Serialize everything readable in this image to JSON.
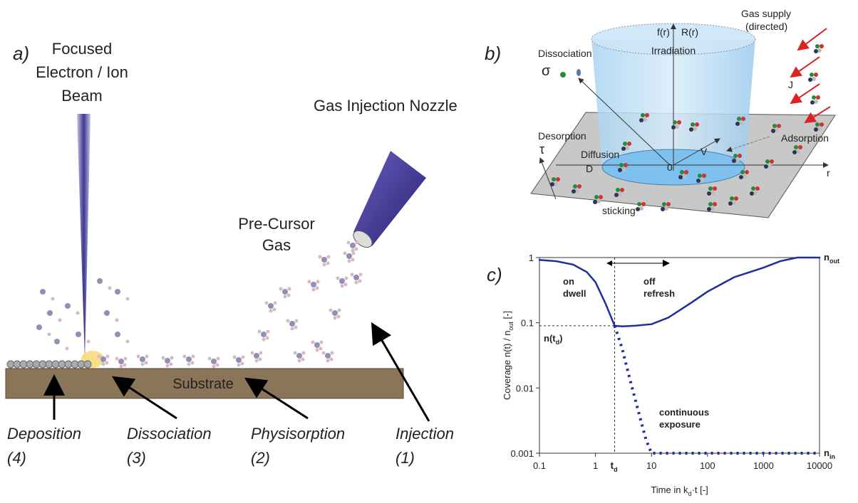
{
  "panel_a": {
    "tag": "a)",
    "beam_label": [
      "Focused",
      "Electron / Ion",
      "Beam"
    ],
    "nozzle_label": "Gas Injection Nozzle",
    "gas_label": [
      "Pre-Cursor",
      "Gas"
    ],
    "substrate": "Substrate",
    "steps": [
      {
        "name": "Deposition",
        "num": "(4)"
      },
      {
        "name": "Dissociation",
        "num": "(3)"
      },
      {
        "name": "Physisorption",
        "num": "(2)"
      },
      {
        "name": "Injection",
        "num": "(1)"
      }
    ]
  },
  "panel_b": {
    "tag": "b)",
    "dissociation": "Dissociation",
    "sigma": "σ",
    "f": "f(r)",
    "R": "R(r)",
    "irradiation": "Irradiation",
    "gas_supply": [
      "Gas supply",
      "(directed)"
    ],
    "J": "J",
    "desorption": "Desorption",
    "tau": "τ",
    "diffusion": "Diffusion",
    "D": "D",
    "V": "V",
    "origin": "0",
    "r": "r",
    "adsorption": "Adsorption",
    "sticking": "sticking"
  },
  "chart_data": {
    "type": "line",
    "tag": "c)",
    "log_x": true,
    "log_y": true,
    "xlim": [
      0.1,
      10000
    ],
    "ylim": [
      0.001,
      1
    ],
    "xticks": [
      0.1,
      1,
      10,
      100,
      1000,
      10000
    ],
    "yticks": [
      0.001,
      0.01,
      0.1,
      1
    ],
    "x_label": {
      "text": "Time in k",
      "sub": "d",
      "tail": "·t [-]"
    },
    "y_label": {
      "text": "Coverage n(t) / n",
      "sub": "out",
      "tail": " [-]"
    },
    "n_out": {
      "text": "n",
      "sub": "out",
      "value": 1
    },
    "n_in": {
      "text": "n",
      "sub": "in",
      "value": 0.001
    },
    "t_d": {
      "text": "t",
      "sub": "d",
      "value": 2.2
    },
    "n_td": {
      "text": "n(t",
      "sub": "d",
      "tail": ")",
      "value": 0.09
    },
    "annotations": {
      "on": [
        "on",
        "dwell"
      ],
      "off": [
        "off",
        "refresh"
      ],
      "continuous": [
        "continuous",
        "exposure"
      ]
    },
    "series": [
      {
        "color": "#1f2d9e",
        "style": "solid",
        "x": [
          0.1,
          0.2,
          0.4,
          0.7,
          1,
          1.5,
          2.2,
          3,
          5,
          10,
          20,
          50,
          100,
          300,
          1000,
          2000,
          4000,
          10000
        ],
        "values": [
          0.92,
          0.88,
          0.78,
          0.6,
          0.42,
          0.2,
          0.09,
          0.088,
          0.09,
          0.095,
          0.12,
          0.2,
          0.3,
          0.5,
          0.7,
          0.88,
          1,
          1
        ]
      },
      {
        "color": "#1f2d9e",
        "style": "dotted",
        "x": [
          2.2,
          3,
          4,
          6,
          8,
          10,
          100,
          1000,
          10000
        ],
        "values": [
          0.09,
          0.04,
          0.015,
          0.004,
          0.0016,
          0.001,
          0.001,
          0.001,
          0.001
        ]
      }
    ]
  }
}
